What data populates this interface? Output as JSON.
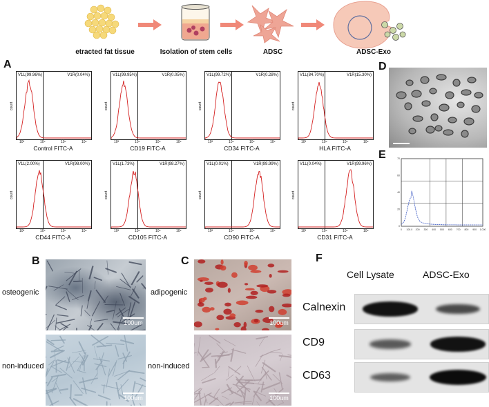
{
  "workflow": {
    "steps": [
      {
        "label": "etracted fat tissue",
        "icon": "fat-tissue-icon"
      },
      {
        "label": "Isolation of stem cells",
        "icon": "culture-dish-icon"
      },
      {
        "label": "ADSC",
        "icon": "stem-cells-icon"
      },
      {
        "label": "ADSC-Exo",
        "icon": "exosome-release-icon"
      }
    ],
    "arrow_color": "#f08878"
  },
  "panels": {
    "a": "A",
    "b": "B",
    "c": "C",
    "d": "D",
    "e": "E",
    "f": "F"
  },
  "flow_cytometry": {
    "y_axis_label": "count",
    "trace_color": "#d42020",
    "histograms": [
      {
        "marker": "Control FITC-A",
        "left_gate": "V1L(99.96%)",
        "right_gate": "V1R(0.04%)",
        "peak_log": 3.3
      },
      {
        "marker": "CD19 FITC-A",
        "left_gate": "V1L(99.95%)",
        "right_gate": "V1R(0.05%)",
        "peak_log": 3.3
      },
      {
        "marker": "CD34 FITC-A",
        "left_gate": "V1L(99.72%)",
        "right_gate": "V1R(0.28%)",
        "peak_log": 3.4
      },
      {
        "marker": "HLA FITC-A",
        "left_gate": "V1L(84.70%)",
        "right_gate": "V1R(15.30%)",
        "peak_log": 3.7
      },
      {
        "marker": "CD44 FITC-A",
        "left_gate": "V1L(2.00%)",
        "right_gate": "V1R(98.00%)",
        "peak_log": 3.8
      },
      {
        "marker": "CD105 FITC-A",
        "left_gate": "V1L(1.73%)",
        "right_gate": "V1R(98.27%)",
        "peak_log": 3.8
      },
      {
        "marker": "CD90 FITC-A",
        "left_gate": "V1L(0.01%)",
        "right_gate": "V1R(99.99%)",
        "peak_log": 5.3
      },
      {
        "marker": "CD31 FITC-A",
        "left_gate": "V1L(0.04%)",
        "right_gate": "V1R(99.96%)",
        "peak_log": 5.2
      }
    ]
  },
  "differentiation": {
    "b_conditions": [
      "osteogenic",
      "non-induced"
    ],
    "c_conditions": [
      "adipogenic",
      "non-induced"
    ],
    "scale_bar": "100um"
  },
  "western_blot": {
    "columns": [
      "Cell Lysate",
      "ADSC-Exo"
    ],
    "rows": [
      {
        "protein": "Calnexin",
        "lysate_intensity": 0.95,
        "exo_intensity": 0.55
      },
      {
        "protein": "CD9",
        "lysate_intensity": 0.45,
        "exo_intensity": 0.95
      },
      {
        "protein": "CD63",
        "lysate_intensity": 0.4,
        "exo_intensity": 1.0
      }
    ]
  },
  "nanoparticle_tracking": {
    "trace_color": "#3050c0",
    "x_ticks": [
      "0",
      "100.0",
      "200",
      "300",
      "400",
      "500",
      "600",
      "700",
      "800",
      "900",
      "1.000"
    ],
    "y_ticks": [
      "0",
      "20",
      "40",
      "60",
      "70"
    ]
  }
}
